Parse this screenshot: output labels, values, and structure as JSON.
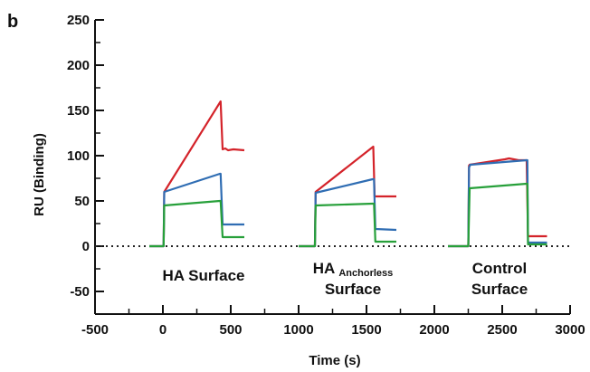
{
  "panel_label": "b",
  "chart_data": {
    "type": "line",
    "xlabel": "Time (s)",
    "ylabel": "RU (Binding)",
    "xlim": [
      -500,
      3000
    ],
    "ylim": [
      -75,
      250
    ],
    "xticks": [
      -500,
      0,
      500,
      1000,
      1500,
      2000,
      2500,
      3000
    ],
    "yticks": [
      250,
      200,
      150,
      100,
      50,
      0,
      -50
    ],
    "baseline": 0,
    "colors": {
      "red": "#d4232a",
      "blue": "#2f6db3",
      "green": "#27a03a",
      "axis": "#111111"
    },
    "series": [
      {
        "color": "red",
        "points": [
          [
            -100,
            0
          ],
          [
            5,
            0
          ],
          [
            10,
            60
          ],
          [
            425,
            160
          ],
          [
            440,
            107
          ],
          [
            460,
            108
          ],
          [
            480,
            106
          ],
          [
            520,
            107
          ],
          [
            600,
            106
          ]
        ]
      },
      {
        "color": "blue",
        "points": [
          [
            -100,
            0
          ],
          [
            5,
            0
          ],
          [
            10,
            60
          ],
          [
            420,
            80
          ],
          [
            425,
            80
          ],
          [
            440,
            24
          ],
          [
            600,
            24
          ]
        ]
      },
      {
        "color": "green",
        "points": [
          [
            -100,
            0
          ],
          [
            5,
            0
          ],
          [
            10,
            45
          ],
          [
            420,
            50
          ],
          [
            425,
            50
          ],
          [
            440,
            10
          ],
          [
            600,
            10
          ]
        ]
      },
      {
        "color": "red",
        "points": [
          [
            1000,
            0
          ],
          [
            1120,
            0
          ],
          [
            1125,
            60
          ],
          [
            1550,
            110
          ],
          [
            1560,
            55
          ],
          [
            1720,
            55
          ]
        ]
      },
      {
        "color": "blue",
        "points": [
          [
            1000,
            0
          ],
          [
            1120,
            0
          ],
          [
            1125,
            59
          ],
          [
            1545,
            74
          ],
          [
            1555,
            74
          ],
          [
            1565,
            19
          ],
          [
            1720,
            18
          ]
        ]
      },
      {
        "color": "green",
        "points": [
          [
            1000,
            0
          ],
          [
            1120,
            0
          ],
          [
            1125,
            45
          ],
          [
            1545,
            47
          ],
          [
            1555,
            47
          ],
          [
            1565,
            5
          ],
          [
            1720,
            5
          ]
        ]
      },
      {
        "color": "red",
        "points": [
          [
            2100,
            0
          ],
          [
            2250,
            0
          ],
          [
            2255,
            89
          ],
          [
            2260,
            90
          ],
          [
            2520,
            96
          ],
          [
            2550,
            97
          ],
          [
            2620,
            95
          ],
          [
            2680,
            95
          ],
          [
            2690,
            11
          ],
          [
            2830,
            11
          ]
        ]
      },
      {
        "color": "blue",
        "points": [
          [
            2100,
            0
          ],
          [
            2250,
            0
          ],
          [
            2255,
            87
          ],
          [
            2265,
            90
          ],
          [
            2680,
            95
          ],
          [
            2685,
            95
          ],
          [
            2690,
            4
          ],
          [
            2830,
            4
          ]
        ]
      },
      {
        "color": "green",
        "points": [
          [
            2100,
            0
          ],
          [
            2250,
            0
          ],
          [
            2260,
            64
          ],
          [
            2680,
            69
          ],
          [
            2685,
            69
          ],
          [
            2690,
            2
          ],
          [
            2830,
            2
          ]
        ]
      }
    ],
    "annotations": [
      {
        "text": "HA Surface",
        "x": 300,
        "y": -38
      },
      {
        "text": "HA",
        "sub": "Anchorless",
        "text2": "Surface",
        "x": 1400,
        "y": -30
      },
      {
        "text": "Control",
        "text2": "Surface",
        "x": 2480,
        "y": -30
      }
    ]
  }
}
